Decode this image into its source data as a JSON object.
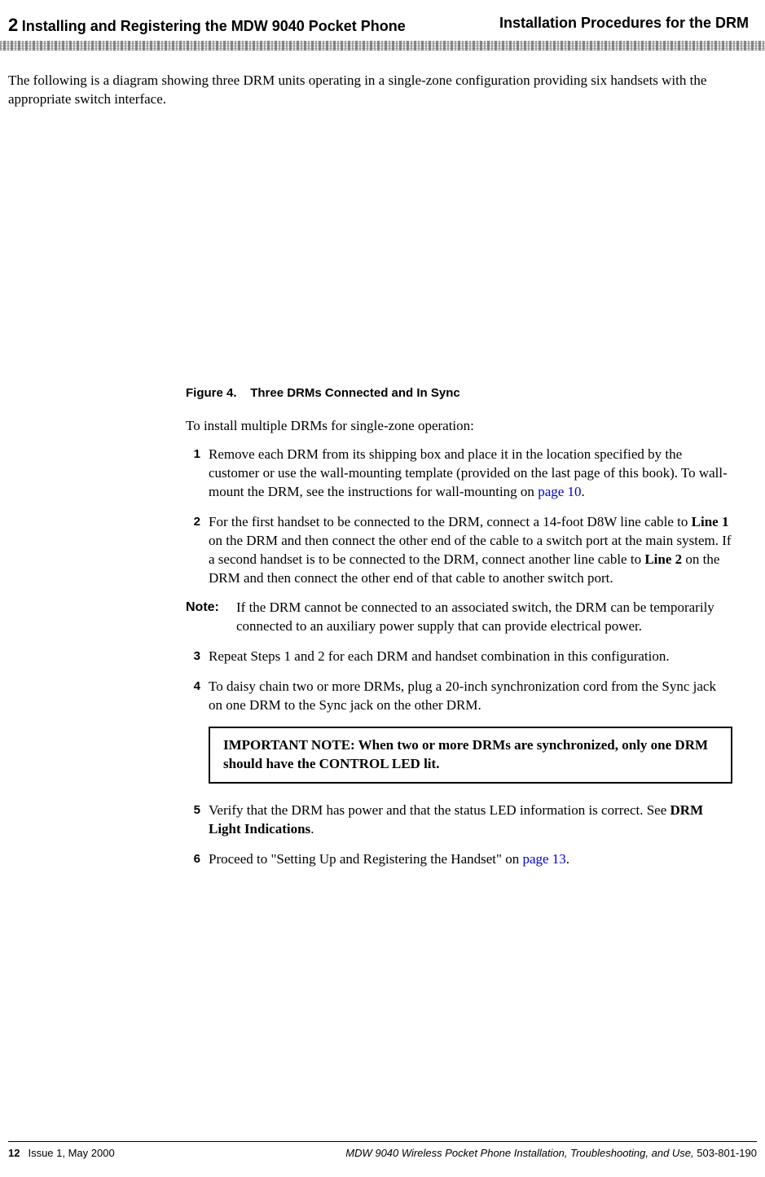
{
  "header": {
    "chapter_num": "2",
    "chapter_title": "Installing and Registering the MDW 9040 Pocket Phone",
    "section_title": "Installation Procedures for the DRM"
  },
  "intro": "The following is a diagram showing three DRM units operating in a single-zone configuration providing six handsets with the appropriate switch interface.",
  "figure": {
    "label": "Figure 4.",
    "caption": "Three DRMs Connected and In Sync"
  },
  "lead": "To install multiple DRMs for single-zone operation:",
  "steps": {
    "s1": {
      "num": "1",
      "pre": "Remove each DRM from its shipping box and place it in the location specified by the customer or use the wall-mounting template (provided on the last page of this book). To wall-mount the DRM, see the instructions for wall-mounting on ",
      "link": "page 10",
      "post": "."
    },
    "s2": {
      "num": "2",
      "p1": "For the first handset to be connected to the DRM, connect a 14-foot D8W line cable to ",
      "b1": "Line 1",
      "p2": " on the DRM and then connect the other end of the cable to a switch port at the main system. If a second handset is to be connected to the DRM, connect another line cable to ",
      "b2": "Line 2",
      "p3": " on the DRM and then connect the other end of that cable to another switch port."
    },
    "note": {
      "label": "Note:",
      "body": "If the DRM cannot be connected to an associated switch, the DRM can be temporarily connected to an auxiliary power supply that can provide electrical power."
    },
    "s3": {
      "num": "3",
      "body": "Repeat Steps 1 and 2 for each DRM and handset combination in this configuration."
    },
    "s4": {
      "num": "4",
      "body": "To daisy chain two or more DRMs, plug a 20-inch synchronization cord from the Sync jack on one DRM to the Sync jack on the other DRM."
    },
    "important": "IMPORTANT NOTE: When two or more DRMs are synchronized, only one DRM should have the CONTROL LED lit.",
    "s5": {
      "num": "5",
      "p1": "Verify that the DRM has power and that the status LED information is correct. See ",
      "b1": "DRM Light Indications",
      "p2": "."
    },
    "s6": {
      "num": "6",
      "p1": "Proceed to \"Setting Up and Registering the Handset\" on ",
      "link": "page 13",
      "p2": "."
    }
  },
  "footer": {
    "page": "12",
    "issue": "Issue 1, May 2000",
    "title": "MDW 9040 Wireless Pocket Phone Installation, Troubleshooting, and Use, ",
    "docnum": "503-801-190"
  }
}
